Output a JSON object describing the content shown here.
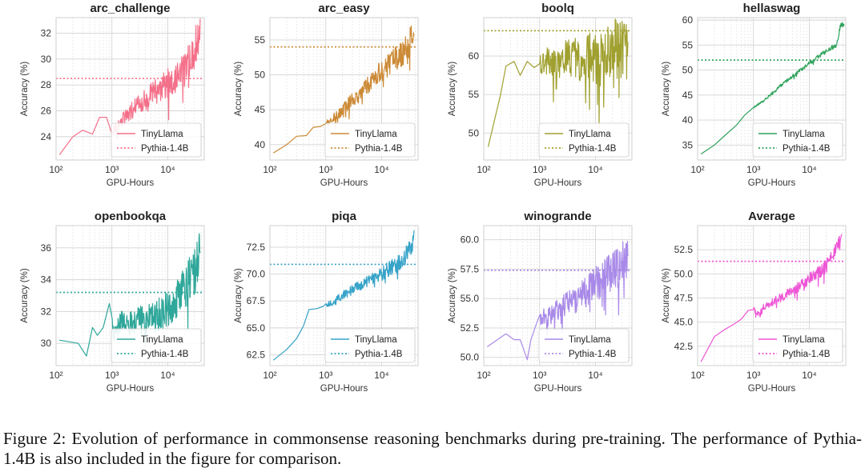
{
  "figure": {
    "caption": "Figure 2: Evolution of performance in commonsense reasoning benchmarks during pre-training. The performance of Pythia-1.4B is also included in the figure for comparison."
  },
  "chart_data": [
    {
      "type": "line",
      "title": "arc_challenge",
      "xlabel": "GPU-Hours",
      "ylabel": "Accuracy (%)",
      "xscale": "log",
      "xlim": [
        100,
        45000
      ],
      "ylim": [
        22.2,
        33.2
      ],
      "yticks": [
        24,
        26,
        28,
        30,
        32
      ],
      "ytick_labels": [
        "24",
        "26",
        "28",
        "30",
        "32"
      ],
      "color": "#f4708a",
      "baseline": 28.5,
      "series": [
        {
          "name": "TinyLlama",
          "style": "solid",
          "points": [
            [
              115,
              22.6
            ],
            [
              200,
              24.0
            ],
            [
              300,
              24.5
            ],
            [
              450,
              24.2
            ],
            [
              600,
              25.5
            ],
            [
              800,
              25.5
            ],
            [
              1000,
              24.2
            ],
            [
              1200,
              24.8
            ],
            [
              1500,
              25.2
            ],
            [
              2000,
              25.8
            ],
            [
              3000,
              26.5
            ],
            [
              5000,
              27.2
            ],
            [
              8000,
              27.8
            ],
            [
              12000,
              28.5
            ],
            [
              20000,
              29.0
            ],
            [
              30000,
              30.8
            ],
            [
              38000,
              32.0
            ]
          ],
          "noise": [
            0.4,
            1.6
          ]
        },
        {
          "name": "Pythia-1.4B",
          "style": "dotted"
        }
      ],
      "legend": [
        "TinyLlama",
        "Pythia-1.4B"
      ],
      "legend_loc": "lower right"
    },
    {
      "type": "line",
      "title": "arc_easy",
      "xlabel": "GPU-Hours",
      "ylabel": "Accuracy (%)",
      "xscale": "log",
      "xlim": [
        100,
        45000
      ],
      "ylim": [
        37.8,
        58.2
      ],
      "yticks": [
        40,
        45,
        50,
        55
      ],
      "ytick_labels": [
        "40",
        "45",
        "50",
        "55"
      ],
      "color": "#cc8a36",
      "baseline": 54.0,
      "series": [
        {
          "name": "TinyLlama",
          "style": "solid",
          "points": [
            [
              115,
              38.8
            ],
            [
              200,
              40.0
            ],
            [
              300,
              41.2
            ],
            [
              450,
              41.3
            ],
            [
              600,
              42.5
            ],
            [
              800,
              42.6
            ],
            [
              1000,
              43.0
            ],
            [
              1500,
              44.0
            ],
            [
              2000,
              45.0
            ],
            [
              3000,
              46.5
            ],
            [
              5000,
              48.0
            ],
            [
              8000,
              50.0
            ],
            [
              12000,
              51.0
            ],
            [
              20000,
              52.5
            ],
            [
              30000,
              54.0
            ],
            [
              38000,
              56.5
            ]
          ],
          "noise": [
            0.5,
            2.2
          ]
        },
        {
          "name": "Pythia-1.4B",
          "style": "dotted"
        }
      ],
      "legend": [
        "TinyLlama",
        "Pythia-1.4B"
      ],
      "legend_loc": "lower right"
    },
    {
      "type": "line",
      "title": "boolq",
      "xlabel": "GPU-Hours",
      "ylabel": "Accuracy (%)",
      "xscale": "log",
      "xlim": [
        100,
        45000
      ],
      "ylim": [
        46.5,
        65
      ],
      "yticks": [
        50,
        55,
        60
      ],
      "ytick_labels": [
        "50",
        "55",
        "60"
      ],
      "color": "#a0a030",
      "baseline": 63.3,
      "series": [
        {
          "name": "TinyLlama",
          "style": "solid",
          "points": [
            [
              120,
              48.2
            ],
            [
              200,
              55.0
            ],
            [
              250,
              58.7
            ],
            [
              350,
              59.3
            ],
            [
              450,
              57.5
            ],
            [
              600,
              59.3
            ],
            [
              800,
              58.5
            ],
            [
              1000,
              59.0
            ],
            [
              1500,
              59.5
            ],
            [
              2000,
              58.5
            ],
            [
              3000,
              60.0
            ],
            [
              5000,
              59.5
            ],
            [
              8000,
              60.0
            ],
            [
              12000,
              59.5
            ],
            [
              20000,
              60.5
            ],
            [
              30000,
              61.5
            ],
            [
              38000,
              60.0
            ]
          ],
          "noise": [
            1.5,
            4.5
          ]
        },
        {
          "name": "Pythia-1.4B",
          "style": "dotted"
        }
      ],
      "legend": [
        "TinyLlama",
        "Pythia-1.4B"
      ],
      "legend_loc": "lower right"
    },
    {
      "type": "line",
      "title": "hellaswag",
      "xlabel": "GPU-Hours",
      "ylabel": "Accuracy (%)",
      "xscale": "log",
      "xlim": [
        100,
        45000
      ],
      "ylim": [
        32,
        60.5
      ],
      "yticks": [
        35,
        40,
        45,
        50,
        55,
        60
      ],
      "ytick_labels": [
        "35",
        "40",
        "45",
        "50",
        "55",
        "60"
      ],
      "color": "#2fa35c",
      "baseline": 52.0,
      "series": [
        {
          "name": "TinyLlama",
          "style": "solid",
          "points": [
            [
              115,
              33.2
            ],
            [
              200,
              35.0
            ],
            [
              300,
              36.8
            ],
            [
              500,
              39.0
            ],
            [
              700,
              41.0
            ],
            [
              1000,
              42.5
            ],
            [
              1500,
              43.8
            ],
            [
              2000,
              45.0
            ],
            [
              3000,
              46.8
            ],
            [
              5000,
              48.8
            ],
            [
              8000,
              50.5
            ],
            [
              12000,
              52.0
            ],
            [
              20000,
              53.8
            ],
            [
              30000,
              55.0
            ],
            [
              33000,
              56.5
            ],
            [
              36000,
              59.0
            ],
            [
              42000,
              59.2
            ]
          ],
          "noise": [
            0.2,
            0.5
          ]
        },
        {
          "name": "Pythia-1.4B",
          "style": "dotted"
        }
      ],
      "legend": [
        "TinyLlama",
        "Pythia-1.4B"
      ],
      "legend_loc": "lower right"
    },
    {
      "type": "line",
      "title": "openbookqa",
      "xlabel": "GPU-Hours",
      "ylabel": "Accuracy (%)",
      "xscale": "log",
      "xlim": [
        100,
        45000
      ],
      "ylim": [
        28.6,
        37.4
      ],
      "yticks": [
        30,
        32,
        34,
        36
      ],
      "ytick_labels": [
        "30",
        "32",
        "34",
        "36"
      ],
      "color": "#2fa79a",
      "baseline": 33.2,
      "series": [
        {
          "name": "TinyLlama",
          "style": "solid",
          "points": [
            [
              115,
              30.2
            ],
            [
              250,
              30.0
            ],
            [
              350,
              29.2
            ],
            [
              450,
              31.0
            ],
            [
              550,
              30.5
            ],
            [
              700,
              31.0
            ],
            [
              900,
              32.5
            ],
            [
              1100,
              30.5
            ],
            [
              1500,
              31.5
            ],
            [
              2000,
              31.2
            ],
            [
              3000,
              31.5
            ],
            [
              5000,
              31.5
            ],
            [
              8000,
              32.0
            ],
            [
              12000,
              32.5
            ],
            [
              20000,
              33.5
            ],
            [
              30000,
              34.5
            ],
            [
              38000,
              35.5
            ]
          ],
          "noise": [
            0.5,
            1.6
          ]
        },
        {
          "name": "Pythia-1.4B",
          "style": "dotted"
        }
      ],
      "legend": [
        "TinyLlama",
        "Pythia-1.4B"
      ],
      "legend_loc": "lower right"
    },
    {
      "type": "line",
      "title": "piqa",
      "xlabel": "GPU-Hours",
      "ylabel": "Accuracy (%)",
      "xscale": "log",
      "xlim": [
        100,
        45000
      ],
      "ylim": [
        61.5,
        74.5
      ],
      "yticks": [
        62.5,
        65.0,
        67.5,
        70.0,
        72.5
      ],
      "ytick_labels": [
        "62.5",
        "65.0",
        "67.5",
        "70.0",
        "72.5"
      ],
      "color": "#36a3c8",
      "baseline": 70.9,
      "series": [
        {
          "name": "TinyLlama",
          "style": "solid",
          "points": [
            [
              115,
              62.0
            ],
            [
              200,
              63.0
            ],
            [
              300,
              64.0
            ],
            [
              400,
              65.2
            ],
            [
              500,
              66.7
            ],
            [
              700,
              66.8
            ],
            [
              900,
              67.0
            ],
            [
              1200,
              67.2
            ],
            [
              1500,
              67.5
            ],
            [
              2000,
              68.0
            ],
            [
              3000,
              68.5
            ],
            [
              5000,
              69.2
            ],
            [
              8000,
              69.8
            ],
            [
              12000,
              70.3
            ],
            [
              20000,
              71.0
            ],
            [
              30000,
              72.0
            ],
            [
              38000,
              73.2
            ]
          ],
          "noise": [
            0.3,
            0.9
          ]
        },
        {
          "name": "Pythia-1.4B",
          "style": "dotted"
        }
      ],
      "legend": [
        "TinyLlama",
        "Pythia-1.4B"
      ],
      "legend_loc": "lower right"
    },
    {
      "type": "line",
      "title": "winogrande",
      "xlabel": "GPU-Hours",
      "ylabel": "Accuracy (%)",
      "xscale": "log",
      "xlim": [
        100,
        45000
      ],
      "ylim": [
        49.3,
        61.2
      ],
      "yticks": [
        50.0,
        52.5,
        55.0,
        57.5,
        60.0
      ],
      "ytick_labels": [
        "50.0",
        "52.5",
        "55.0",
        "57.5",
        "60.0"
      ],
      "color": "#a98ae8",
      "baseline": 57.4,
      "series": [
        {
          "name": "TinyLlama",
          "style": "solid",
          "points": [
            [
              115,
              50.9
            ],
            [
              250,
              52.0
            ],
            [
              350,
              51.5
            ],
            [
              450,
              51.5
            ],
            [
              600,
              49.8
            ],
            [
              700,
              51.5
            ],
            [
              900,
              53.0
            ],
            [
              1200,
              53.5
            ],
            [
              1500,
              53.5
            ],
            [
              2000,
              54.0
            ],
            [
              3000,
              54.5
            ],
            [
              5000,
              55.0
            ],
            [
              8000,
              55.8
            ],
            [
              12000,
              56.5
            ],
            [
              20000,
              57.2
            ],
            [
              30000,
              58.0
            ],
            [
              38000,
              59.0
            ]
          ],
          "noise": [
            0.6,
            2.0
          ]
        },
        {
          "name": "Pythia-1.4B",
          "style": "dotted"
        }
      ],
      "legend": [
        "TinyLlama",
        "Pythia-1.4B"
      ],
      "legend_loc": "lower right"
    },
    {
      "type": "line",
      "title": "Average",
      "xlabel": "GPU-Hours",
      "ylabel": "Accuracy (%)",
      "xscale": "log",
      "xlim": [
        100,
        45000
      ],
      "ylim": [
        40.5,
        55.0
      ],
      "yticks": [
        42.5,
        45.0,
        47.5,
        50.0,
        52.5
      ],
      "ytick_labels": [
        "42.5",
        "45.0",
        "47.5",
        "50.0",
        "52.5"
      ],
      "color": "#ee55d6",
      "baseline": 51.3,
      "series": [
        {
          "name": "TinyLlama",
          "style": "solid",
          "points": [
            [
              115,
              40.9
            ],
            [
              200,
              43.5
            ],
            [
              300,
              44.2
            ],
            [
              450,
              44.8
            ],
            [
              600,
              45.3
            ],
            [
              800,
              46.2
            ],
            [
              1000,
              46.3
            ],
            [
              1300,
              45.8
            ],
            [
              1500,
              46.5
            ],
            [
              2000,
              47.0
            ],
            [
              3000,
              47.5
            ],
            [
              5000,
              48.2
            ],
            [
              8000,
              49.0
            ],
            [
              12000,
              49.8
            ],
            [
              20000,
              50.8
            ],
            [
              30000,
              52.5
            ],
            [
              38000,
              53.6
            ]
          ],
          "noise": [
            0.3,
            0.8
          ]
        },
        {
          "name": "Pythia-1.4B",
          "style": "dotted"
        }
      ],
      "legend": [
        "TinyLlama",
        "Pythia-1.4B"
      ],
      "legend_loc": "lower right"
    }
  ]
}
